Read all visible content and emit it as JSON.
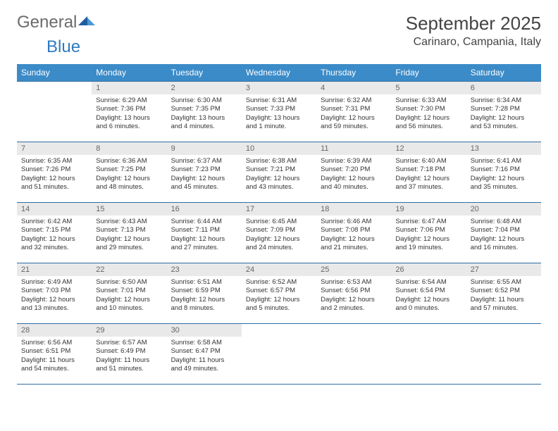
{
  "logo": {
    "text_gray": "General",
    "text_blue": "Blue"
  },
  "title": "September 2025",
  "location": "Carinaro, Campania, Italy",
  "weekdays": [
    "Sunday",
    "Monday",
    "Tuesday",
    "Wednesday",
    "Thursday",
    "Friday",
    "Saturday"
  ],
  "colors": {
    "header_bg": "#3b8bc8",
    "row_border": "#2f6da3",
    "daynum_bg": "#e9e9e9",
    "text": "#333333",
    "logo_gray": "#6b6b6b",
    "logo_blue": "#2f7bbf"
  },
  "typography": {
    "month_fontsize": 26,
    "location_fontsize": 16,
    "weekday_fontsize": 12,
    "daynum_fontsize": 11,
    "body_fontsize": 9.5
  },
  "layout": {
    "columns": 7,
    "rows": 5,
    "first_weekday_offset": 1
  },
  "weeks": [
    [
      {
        "n": "",
        "sunrise": "",
        "sunset": "",
        "daylight": "",
        "empty": true
      },
      {
        "n": "1",
        "sunrise": "Sunrise: 6:29 AM",
        "sunset": "Sunset: 7:36 PM",
        "daylight": "Daylight: 13 hours and 6 minutes."
      },
      {
        "n": "2",
        "sunrise": "Sunrise: 6:30 AM",
        "sunset": "Sunset: 7:35 PM",
        "daylight": "Daylight: 13 hours and 4 minutes."
      },
      {
        "n": "3",
        "sunrise": "Sunrise: 6:31 AM",
        "sunset": "Sunset: 7:33 PM",
        "daylight": "Daylight: 13 hours and 1 minute."
      },
      {
        "n": "4",
        "sunrise": "Sunrise: 6:32 AM",
        "sunset": "Sunset: 7:31 PM",
        "daylight": "Daylight: 12 hours and 59 minutes."
      },
      {
        "n": "5",
        "sunrise": "Sunrise: 6:33 AM",
        "sunset": "Sunset: 7:30 PM",
        "daylight": "Daylight: 12 hours and 56 minutes."
      },
      {
        "n": "6",
        "sunrise": "Sunrise: 6:34 AM",
        "sunset": "Sunset: 7:28 PM",
        "daylight": "Daylight: 12 hours and 53 minutes."
      }
    ],
    [
      {
        "n": "7",
        "sunrise": "Sunrise: 6:35 AM",
        "sunset": "Sunset: 7:26 PM",
        "daylight": "Daylight: 12 hours and 51 minutes."
      },
      {
        "n": "8",
        "sunrise": "Sunrise: 6:36 AM",
        "sunset": "Sunset: 7:25 PM",
        "daylight": "Daylight: 12 hours and 48 minutes."
      },
      {
        "n": "9",
        "sunrise": "Sunrise: 6:37 AM",
        "sunset": "Sunset: 7:23 PM",
        "daylight": "Daylight: 12 hours and 45 minutes."
      },
      {
        "n": "10",
        "sunrise": "Sunrise: 6:38 AM",
        "sunset": "Sunset: 7:21 PM",
        "daylight": "Daylight: 12 hours and 43 minutes."
      },
      {
        "n": "11",
        "sunrise": "Sunrise: 6:39 AM",
        "sunset": "Sunset: 7:20 PM",
        "daylight": "Daylight: 12 hours and 40 minutes."
      },
      {
        "n": "12",
        "sunrise": "Sunrise: 6:40 AM",
        "sunset": "Sunset: 7:18 PM",
        "daylight": "Daylight: 12 hours and 37 minutes."
      },
      {
        "n": "13",
        "sunrise": "Sunrise: 6:41 AM",
        "sunset": "Sunset: 7:16 PM",
        "daylight": "Daylight: 12 hours and 35 minutes."
      }
    ],
    [
      {
        "n": "14",
        "sunrise": "Sunrise: 6:42 AM",
        "sunset": "Sunset: 7:15 PM",
        "daylight": "Daylight: 12 hours and 32 minutes."
      },
      {
        "n": "15",
        "sunrise": "Sunrise: 6:43 AM",
        "sunset": "Sunset: 7:13 PM",
        "daylight": "Daylight: 12 hours and 29 minutes."
      },
      {
        "n": "16",
        "sunrise": "Sunrise: 6:44 AM",
        "sunset": "Sunset: 7:11 PM",
        "daylight": "Daylight: 12 hours and 27 minutes."
      },
      {
        "n": "17",
        "sunrise": "Sunrise: 6:45 AM",
        "sunset": "Sunset: 7:09 PM",
        "daylight": "Daylight: 12 hours and 24 minutes."
      },
      {
        "n": "18",
        "sunrise": "Sunrise: 6:46 AM",
        "sunset": "Sunset: 7:08 PM",
        "daylight": "Daylight: 12 hours and 21 minutes."
      },
      {
        "n": "19",
        "sunrise": "Sunrise: 6:47 AM",
        "sunset": "Sunset: 7:06 PM",
        "daylight": "Daylight: 12 hours and 19 minutes."
      },
      {
        "n": "20",
        "sunrise": "Sunrise: 6:48 AM",
        "sunset": "Sunset: 7:04 PM",
        "daylight": "Daylight: 12 hours and 16 minutes."
      }
    ],
    [
      {
        "n": "21",
        "sunrise": "Sunrise: 6:49 AM",
        "sunset": "Sunset: 7:03 PM",
        "daylight": "Daylight: 12 hours and 13 minutes."
      },
      {
        "n": "22",
        "sunrise": "Sunrise: 6:50 AM",
        "sunset": "Sunset: 7:01 PM",
        "daylight": "Daylight: 12 hours and 10 minutes."
      },
      {
        "n": "23",
        "sunrise": "Sunrise: 6:51 AM",
        "sunset": "Sunset: 6:59 PM",
        "daylight": "Daylight: 12 hours and 8 minutes."
      },
      {
        "n": "24",
        "sunrise": "Sunrise: 6:52 AM",
        "sunset": "Sunset: 6:57 PM",
        "daylight": "Daylight: 12 hours and 5 minutes."
      },
      {
        "n": "25",
        "sunrise": "Sunrise: 6:53 AM",
        "sunset": "Sunset: 6:56 PM",
        "daylight": "Daylight: 12 hours and 2 minutes."
      },
      {
        "n": "26",
        "sunrise": "Sunrise: 6:54 AM",
        "sunset": "Sunset: 6:54 PM",
        "daylight": "Daylight: 12 hours and 0 minutes."
      },
      {
        "n": "27",
        "sunrise": "Sunrise: 6:55 AM",
        "sunset": "Sunset: 6:52 PM",
        "daylight": "Daylight: 11 hours and 57 minutes."
      }
    ],
    [
      {
        "n": "28",
        "sunrise": "Sunrise: 6:56 AM",
        "sunset": "Sunset: 6:51 PM",
        "daylight": "Daylight: 11 hours and 54 minutes."
      },
      {
        "n": "29",
        "sunrise": "Sunrise: 6:57 AM",
        "sunset": "Sunset: 6:49 PM",
        "daylight": "Daylight: 11 hours and 51 minutes."
      },
      {
        "n": "30",
        "sunrise": "Sunrise: 6:58 AM",
        "sunset": "Sunset: 6:47 PM",
        "daylight": "Daylight: 11 hours and 49 minutes."
      },
      {
        "n": "",
        "sunrise": "",
        "sunset": "",
        "daylight": "",
        "empty": true
      },
      {
        "n": "",
        "sunrise": "",
        "sunset": "",
        "daylight": "",
        "empty": true
      },
      {
        "n": "",
        "sunrise": "",
        "sunset": "",
        "daylight": "",
        "empty": true
      },
      {
        "n": "",
        "sunrise": "",
        "sunset": "",
        "daylight": "",
        "empty": true
      }
    ]
  ]
}
